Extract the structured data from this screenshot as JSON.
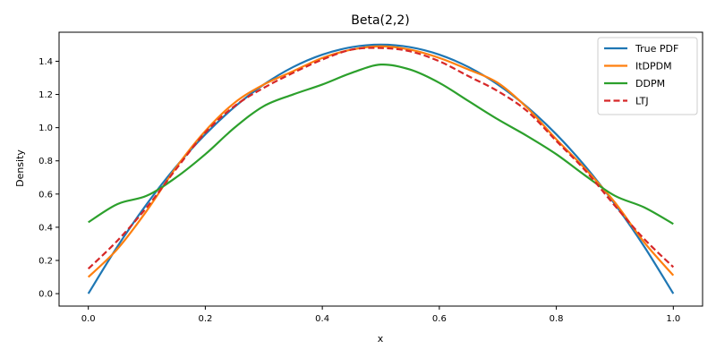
{
  "chart_data": {
    "type": "line",
    "title": "Beta(2,2)",
    "xlabel": "x",
    "ylabel": "Density",
    "xlim": [
      -0.05,
      1.05
    ],
    "ylim": [
      -0.075,
      1.575
    ],
    "xticks": [
      0.0,
      0.2,
      0.4,
      0.6,
      0.8,
      1.0
    ],
    "xtick_labels": [
      "0.0",
      "0.2",
      "0.4",
      "0.6",
      "0.8",
      "1.0"
    ],
    "yticks": [
      0.0,
      0.2,
      0.4,
      0.6,
      0.8,
      1.0,
      1.2,
      1.4
    ],
    "ytick_labels": [
      "0.0",
      "0.2",
      "0.4",
      "0.6",
      "0.8",
      "1.0",
      "1.2",
      "1.4"
    ],
    "grid": false,
    "legend_position": "top-right",
    "series": [
      {
        "name": "True PDF",
        "color": "#1f77b4",
        "dash": "solid",
        "x": [
          0.0,
          0.05,
          0.1,
          0.15,
          0.2,
          0.25,
          0.3,
          0.35,
          0.4,
          0.45,
          0.5,
          0.55,
          0.6,
          0.65,
          0.7,
          0.75,
          0.8,
          0.85,
          0.9,
          0.95,
          1.0
        ],
        "y": [
          0.0,
          0.285,
          0.54,
          0.765,
          0.96,
          1.125,
          1.26,
          1.365,
          1.44,
          1.485,
          1.5,
          1.485,
          1.44,
          1.365,
          1.26,
          1.125,
          0.96,
          0.765,
          0.54,
          0.285,
          0.0
        ]
      },
      {
        "name": "ItDPDM",
        "color": "#ff7f0e",
        "dash": "solid",
        "x": [
          0.0,
          0.05,
          0.1,
          0.15,
          0.2,
          0.25,
          0.3,
          0.35,
          0.4,
          0.45,
          0.5,
          0.55,
          0.6,
          0.65,
          0.7,
          0.75,
          0.8,
          0.85,
          0.9,
          0.95,
          1.0
        ],
        "y": [
          0.1,
          0.27,
          0.5,
          0.76,
          0.98,
          1.15,
          1.26,
          1.34,
          1.42,
          1.47,
          1.49,
          1.47,
          1.42,
          1.35,
          1.27,
          1.12,
          0.93,
          0.75,
          0.55,
          0.31,
          0.11
        ]
      },
      {
        "name": "DDPM",
        "color": "#2ca02c",
        "dash": "solid",
        "x": [
          0.0,
          0.05,
          0.1,
          0.15,
          0.2,
          0.25,
          0.3,
          0.35,
          0.4,
          0.45,
          0.5,
          0.55,
          0.6,
          0.65,
          0.7,
          0.75,
          0.8,
          0.85,
          0.9,
          0.95,
          1.0
        ],
        "y": [
          0.43,
          0.54,
          0.59,
          0.7,
          0.84,
          1.0,
          1.13,
          1.2,
          1.26,
          1.33,
          1.38,
          1.35,
          1.27,
          1.16,
          1.05,
          0.95,
          0.84,
          0.71,
          0.59,
          0.52,
          0.42
        ]
      },
      {
        "name": "LTJ",
        "color": "#d62728",
        "dash": "dashed",
        "x": [
          0.0,
          0.05,
          0.1,
          0.15,
          0.2,
          0.25,
          0.3,
          0.35,
          0.4,
          0.45,
          0.5,
          0.55,
          0.6,
          0.65,
          0.7,
          0.75,
          0.8,
          0.85,
          0.9,
          0.95,
          1.0
        ],
        "y": [
          0.15,
          0.32,
          0.52,
          0.75,
          0.97,
          1.13,
          1.24,
          1.33,
          1.41,
          1.47,
          1.48,
          1.46,
          1.4,
          1.31,
          1.22,
          1.1,
          0.92,
          0.74,
          0.53,
          0.33,
          0.16
        ]
      }
    ]
  }
}
